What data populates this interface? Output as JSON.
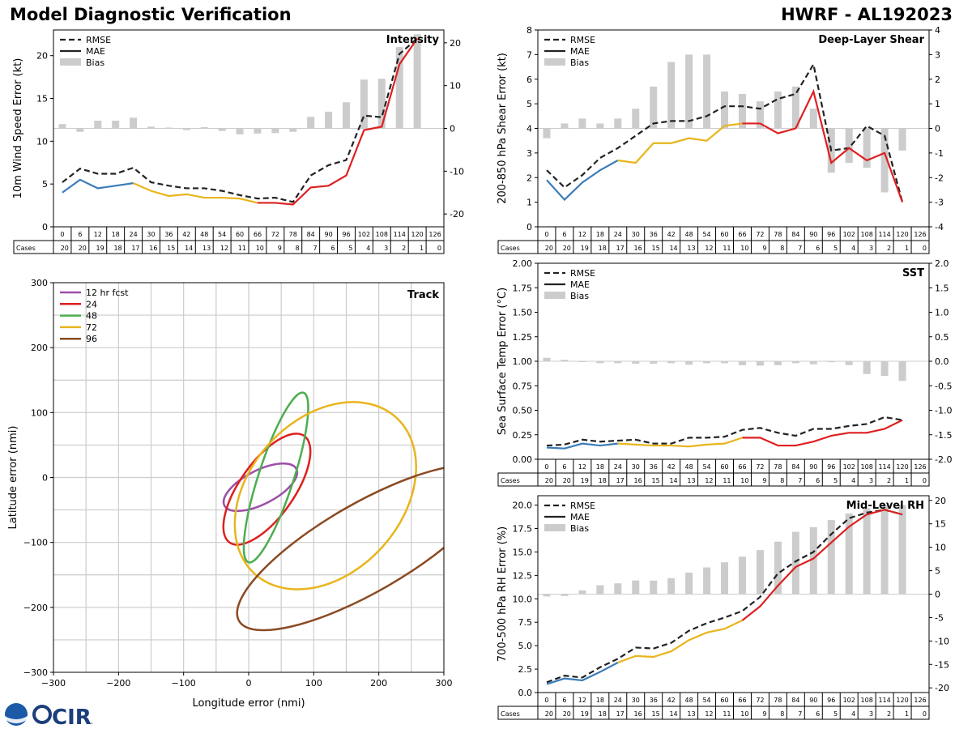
{
  "header": {
    "title_left": "Model Diagnostic Verification",
    "title_right": "HWRF - AL192023"
  },
  "logo": {
    "text": "CIRA",
    "noaa_text": "NOAA"
  },
  "colors": {
    "rmse": "#222222",
    "early": "#3a7cb8",
    "mid": "#e8b51c",
    "late": "#de2020",
    "bias": "#cccccc",
    "grid": "#cccccc"
  },
  "table": {
    "cases_label": "Cases",
    "hours": [
      0,
      6,
      12,
      18,
      24,
      30,
      36,
      42,
      48,
      54,
      60,
      66,
      72,
      78,
      84,
      90,
      96,
      102,
      108,
      114,
      120,
      126
    ],
    "cases": [
      20,
      20,
      19,
      18,
      17,
      16,
      15,
      14,
      13,
      12,
      11,
      10,
      9,
      8,
      7,
      6,
      5,
      4,
      3,
      2,
      1,
      0
    ]
  },
  "chart_data": [
    {
      "id": "intensity",
      "type": "line",
      "title": "Intensity",
      "ylabel": "10m Wind Speed Error (kt)",
      "ylim": [
        0,
        23
      ],
      "yticks": [
        0,
        5,
        10,
        15,
        20
      ],
      "y2lim": [
        -23,
        23
      ],
      "y2ticks": [
        -20,
        -10,
        0,
        10,
        20
      ],
      "legend": [
        "RMSE",
        "MAE",
        "Bias"
      ],
      "rmse": [
        5.2,
        6.8,
        6.2,
        6.2,
        6.9,
        5.2,
        4.8,
        4.5,
        4.5,
        4.2,
        3.7,
        3.3,
        3.4,
        2.9,
        6.0,
        7.2,
        7.8,
        13.0,
        12.8,
        20.2,
        22.0
      ],
      "mae": [
        4.0,
        5.5,
        4.5,
        4.8,
        5.1,
        4.2,
        3.6,
        3.8,
        3.4,
        3.4,
        3.3,
        2.8,
        2.8,
        2.6,
        4.6,
        4.8,
        6.0,
        11.3,
        11.7,
        19.0,
        22.0
      ],
      "bias": [
        1.0,
        -0.8,
        1.8,
        1.8,
        2.5,
        0.4,
        0.2,
        -0.4,
        0.3,
        -0.6,
        -1.4,
        -1.2,
        -1.1,
        -0.8,
        2.7,
        3.9,
        6.1,
        11.4,
        11.6,
        19.0,
        22.0
      ]
    },
    {
      "id": "shear",
      "type": "line",
      "title": "Deep-Layer Shear",
      "ylabel": "200-850 hPa Shear Error (kt)",
      "ylim": [
        0,
        8
      ],
      "yticks": [
        0,
        1,
        2,
        3,
        4,
        5,
        6,
        7,
        8
      ],
      "y2lim": [
        -4,
        4
      ],
      "y2ticks": [
        -4,
        -3,
        -2,
        -1,
        0,
        1,
        2,
        3,
        4
      ],
      "legend": [
        "RMSE",
        "MAE",
        "Bias"
      ],
      "rmse": [
        2.3,
        1.6,
        2.1,
        2.8,
        3.2,
        3.7,
        4.2,
        4.3,
        4.3,
        4.5,
        4.9,
        4.9,
        4.8,
        5.2,
        5.4,
        6.6,
        3.1,
        3.2,
        4.1,
        3.7,
        1.0
      ],
      "mae": [
        1.9,
        1.1,
        1.8,
        2.3,
        2.7,
        2.6,
        3.4,
        3.4,
        3.6,
        3.5,
        4.1,
        4.2,
        4.2,
        3.8,
        4.0,
        5.5,
        2.6,
        3.2,
        2.7,
        3.0,
        1.0
      ],
      "bias": [
        -0.4,
        0.2,
        0.4,
        0.2,
        0.4,
        0.8,
        1.7,
        2.7,
        3.0,
        3.0,
        1.5,
        1.4,
        1.1,
        1.5,
        1.7,
        0.8,
        -1.8,
        -1.4,
        -1.6,
        -2.6,
        -0.9
      ]
    },
    {
      "id": "sst",
      "type": "line",
      "title": "SST",
      "ylabel": "Sea Surface Temp Error (°C)",
      "ylim": [
        0,
        2.0
      ],
      "yticks": [
        0.0,
        0.25,
        0.5,
        0.75,
        1.0,
        1.25,
        1.5,
        1.75,
        2.0
      ],
      "y2lim": [
        -2.0,
        2.0
      ],
      "y2ticks": [
        -2.0,
        -1.5,
        -1.0,
        -0.5,
        0.0,
        0.5,
        1.0,
        1.5,
        2.0
      ],
      "legend": [
        "RMSE",
        "MAE",
        "Bias"
      ],
      "rmse": [
        0.14,
        0.15,
        0.2,
        0.18,
        0.19,
        0.2,
        0.16,
        0.16,
        0.22,
        0.22,
        0.23,
        0.3,
        0.32,
        0.27,
        0.24,
        0.31,
        0.31,
        0.34,
        0.36,
        0.43,
        0.4
      ],
      "mae": [
        0.12,
        0.11,
        0.16,
        0.14,
        0.16,
        0.15,
        0.14,
        0.14,
        0.13,
        0.15,
        0.16,
        0.22,
        0.22,
        0.14,
        0.14,
        0.18,
        0.24,
        0.27,
        0.27,
        0.31,
        0.4
      ],
      "bias": [
        0.07,
        0.03,
        -0.01,
        -0.04,
        -0.04,
        -0.05,
        -0.05,
        -0.04,
        -0.07,
        -0.04,
        -0.04,
        -0.08,
        -0.09,
        -0.08,
        -0.04,
        -0.06,
        -0.02,
        -0.08,
        -0.26,
        -0.3,
        -0.4
      ]
    },
    {
      "id": "rh",
      "type": "line",
      "title": "Mid-Level RH",
      "ylabel": "700-500 hPa RH Error (%)",
      "ylim": [
        0,
        21
      ],
      "yticks": [
        0.0,
        2.5,
        5.0,
        7.5,
        10.0,
        12.5,
        15.0,
        17.5,
        20.0
      ],
      "y2lim": [
        -21,
        21
      ],
      "y2ticks": [
        -20,
        -15,
        -10,
        -5,
        0,
        5,
        10,
        15,
        20
      ],
      "legend": [
        "RMSE",
        "MAE",
        "Bias"
      ],
      "rmse": [
        1.1,
        1.8,
        1.6,
        2.7,
        3.6,
        4.8,
        4.7,
        5.3,
        6.6,
        7.4,
        8.0,
        8.7,
        10.2,
        12.7,
        14.0,
        15.0,
        16.9,
        18.6,
        19.2,
        19.5,
        19.0
      ],
      "mae": [
        0.9,
        1.5,
        1.3,
        2.2,
        3.2,
        3.9,
        3.8,
        4.4,
        5.6,
        6.4,
        6.8,
        7.7,
        9.2,
        11.4,
        13.4,
        14.3,
        16.0,
        17.7,
        19.0,
        19.5,
        19.0
      ],
      "bias": [
        -0.5,
        -0.4,
        0.8,
        1.9,
        2.3,
        2.9,
        2.9,
        3.4,
        4.6,
        5.7,
        6.8,
        8.0,
        9.4,
        11.2,
        13.3,
        14.3,
        15.8,
        17.2,
        18.3,
        19.0,
        19.0
      ]
    },
    {
      "id": "track",
      "type": "scatter",
      "title": "Track",
      "xlabel": "Longitude error (nmi)",
      "ylabel": "Latitude error (nmi)",
      "xlim": [
        -300,
        300
      ],
      "ylim": [
        -300,
        300
      ],
      "ticks": [
        -300,
        -200,
        -100,
        0,
        100,
        200,
        300
      ],
      "legend": [
        "12 hr fcst",
        "24",
        "48",
        "72",
        "96"
      ],
      "ellipse_colors": [
        "#9c4fa8",
        "#de2020",
        "#4cae4f",
        "#e8b51c",
        "#8b4a22"
      ],
      "ellipses": [
        {
          "label": "12 hr fcst",
          "cx": 18,
          "cy": -15,
          "a": 62,
          "b": 26,
          "angle_deg": 27
        },
        {
          "label": "24",
          "cx": 28,
          "cy": -18,
          "a": 100,
          "b": 42,
          "angle_deg": 55
        },
        {
          "label": "48",
          "cx": 42,
          "cy": 0,
          "a": 137,
          "b": 27,
          "angle_deg": 72
        },
        {
          "label": "72",
          "cx": 118,
          "cy": -28,
          "a": 162,
          "b": 118,
          "angle_deg": 48
        },
        {
          "label": "96",
          "cx": 180,
          "cy": -108,
          "a": 225,
          "b": 68,
          "angle_deg": 30
        }
      ]
    }
  ]
}
